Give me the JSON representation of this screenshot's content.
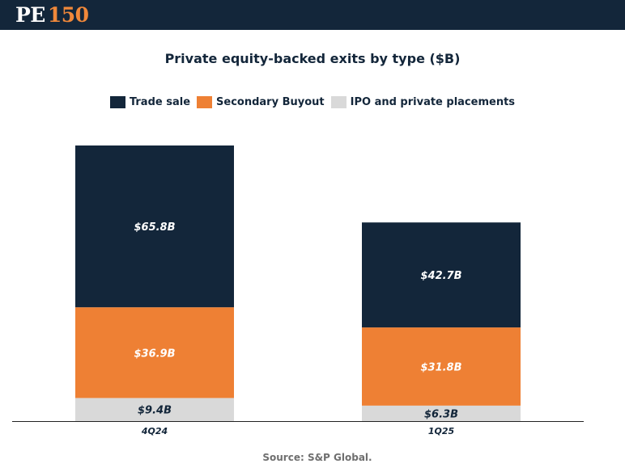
{
  "header": {
    "logo_text": "PE",
    "logo_number": "150"
  },
  "colors": {
    "header_bg": "#13263a",
    "trade_sale": "#13263a",
    "secondary_buyout": "#ee8034",
    "ipo": "#d9d9d9",
    "logo_accent": "#f0883a"
  },
  "source": "Source: S&P Global.",
  "chart_data": {
    "type": "bar",
    "stacked": true,
    "title": "Private equity-backed exits by type ($B)",
    "categories": [
      "4Q24",
      "1Q25"
    ],
    "series": [
      {
        "name": "IPO and private placements",
        "values": [
          9.4,
          6.3
        ],
        "labels": [
          "$9.4B",
          "$6.3B"
        ],
        "color": "#d9d9d9",
        "label_color": "#13263a"
      },
      {
        "name": "Secondary Buyout",
        "values": [
          36.9,
          31.8
        ],
        "labels": [
          "$36.9B",
          "$31.8B"
        ],
        "color": "#ee8034",
        "label_color": "#ffffff"
      },
      {
        "name": "Trade sale",
        "values": [
          65.8,
          42.7
        ],
        "labels": [
          "$65.8B",
          "$42.7B"
        ],
        "color": "#13263a",
        "label_color": "#ffffff"
      }
    ],
    "legend": [
      "Trade sale",
      "Secondary Buyout",
      "IPO and private placements"
    ],
    "legend_position": "top",
    "ylim": [
      0,
      112.1
    ],
    "grid": false,
    "xlabel": "",
    "ylabel": ""
  }
}
